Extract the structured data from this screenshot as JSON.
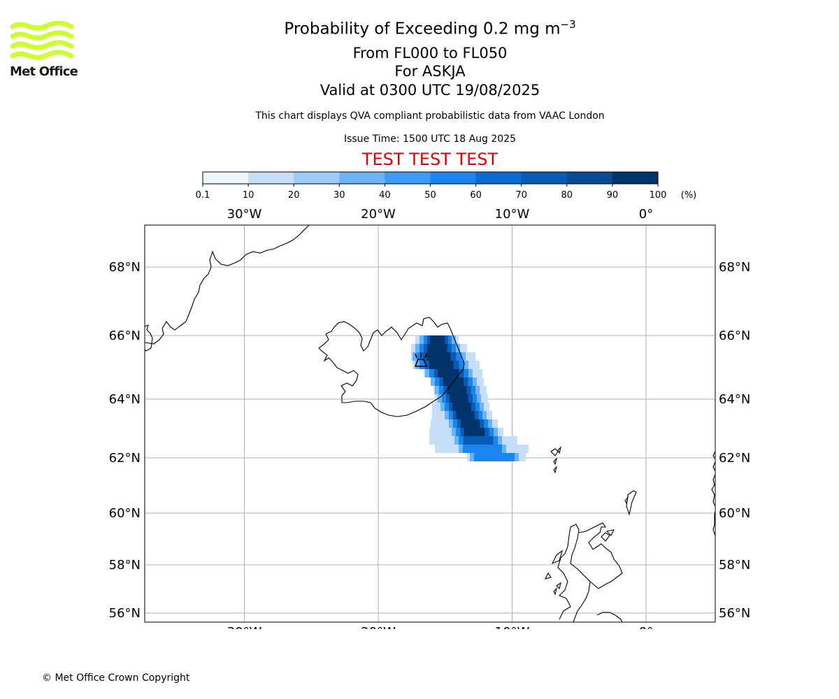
{
  "header": {
    "title_prefix": "Probability of Exceeding 0.2 mg m",
    "title_exponent": "−3",
    "line2": "From FL000 to FL050",
    "line3": "For ASKJA",
    "line4": "Valid at 0300 UTC 19/08/2025",
    "description": "This chart displays QVA compliant probabilistic data from VAAC London",
    "issue_time": "Issue Time: 1500 UTC 18 Aug 2025",
    "test_banner": "TEST TEST TEST"
  },
  "logo": {
    "text": "Met Office",
    "color": "#ccff33"
  },
  "colorbar": {
    "ticks": [
      "0.1",
      "10",
      "20",
      "30",
      "40",
      "50",
      "60",
      "70",
      "80",
      "90",
      "100"
    ],
    "unit": "(%)",
    "colors": [
      "#eef5fd",
      "#c6dff8",
      "#9dcaf7",
      "#6cb3f5",
      "#3d9bf3",
      "#1b85ee",
      "#0a6bd2",
      "#075cb5",
      "#044c94",
      "#02336b"
    ]
  },
  "map": {
    "lon_labels": [
      "30°W",
      "20°W",
      "10°W",
      "0°"
    ],
    "lat_labels": [
      "68°N",
      "66°N",
      "64°N",
      "62°N",
      "60°N",
      "58°N",
      "56°N"
    ],
    "lon_values": [
      -30,
      -20,
      -10,
      0
    ],
    "lat_values": [
      68,
      66,
      64,
      62,
      60,
      58,
      56
    ],
    "volcano": "ASKJA",
    "plume_colors": {
      "low": "#c6dff8",
      "mid": "#6cb3f5",
      "high": "#1b85ee",
      "vhigh": "#075cb5",
      "max": "#02336b"
    }
  },
  "footer": {
    "copyright": "© Met Office Crown Copyright"
  }
}
